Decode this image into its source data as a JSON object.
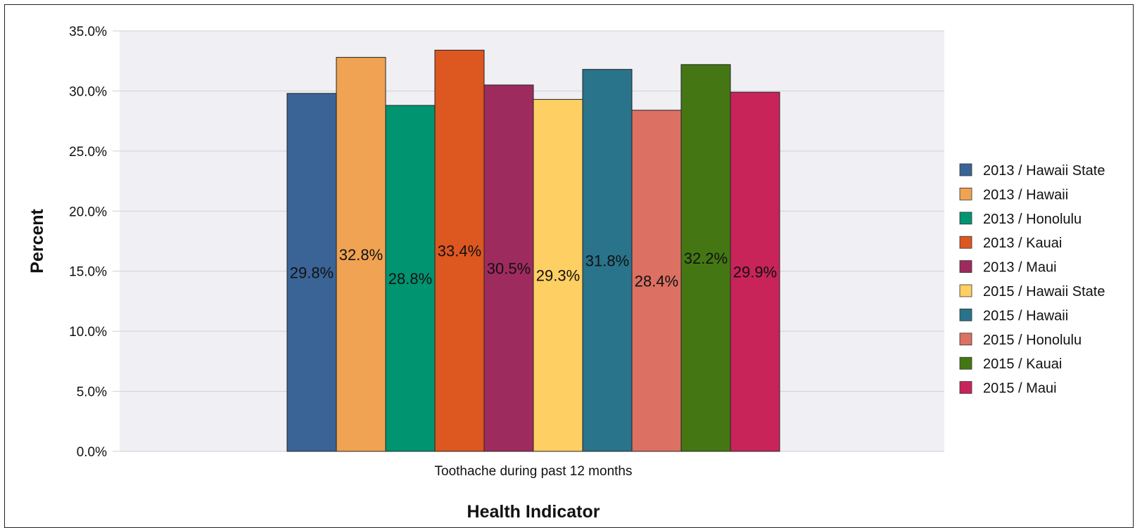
{
  "chart_data": {
    "type": "bar",
    "categories": [
      "Toothache during past 12 months"
    ],
    "series": [
      {
        "name": "2013 / Hawaii State",
        "values": [
          29.8
        ],
        "label": "29.8%",
        "color": "#3a6496"
      },
      {
        "name": "2013 / Hawaii",
        "values": [
          32.8
        ],
        "label": "32.8%",
        "color": "#f0a352"
      },
      {
        "name": "2013 / Honolulu",
        "values": [
          28.8
        ],
        "label": "28.8%",
        "color": "#009471"
      },
      {
        "name": "2013 / Kauai",
        "values": [
          33.4
        ],
        "label": "33.4%",
        "color": "#dd5720"
      },
      {
        "name": "2013 / Maui",
        "values": [
          30.5
        ],
        "label": "30.5%",
        "color": "#9e2b5e"
      },
      {
        "name": "2015 / Hawaii State",
        "values": [
          29.3
        ],
        "label": "29.3%",
        "color": "#fecf62"
      },
      {
        "name": "2015 / Hawaii",
        "values": [
          31.8
        ],
        "label": "31.8%",
        "color": "#29738b"
      },
      {
        "name": "2015 / Honolulu",
        "values": [
          28.4
        ],
        "label": "28.4%",
        "color": "#dc7063"
      },
      {
        "name": "2015 / Kauai",
        "values": [
          32.2
        ],
        "label": "32.2%",
        "color": "#447714"
      },
      {
        "name": "2015 / Maui",
        "values": [
          29.9
        ],
        "label": "29.9%",
        "color": "#c82459"
      }
    ],
    "xlabel": "Health Indicator",
    "ylabel": "Percent",
    "ylim": [
      0,
      35
    ],
    "yticks": [
      "0.0%",
      "5.0%",
      "10.0%",
      "15.0%",
      "20.0%",
      "25.0%",
      "30.0%",
      "35.0%"
    ],
    "grid": true,
    "legend_position": "right",
    "plot_background": "#f0eff4"
  }
}
